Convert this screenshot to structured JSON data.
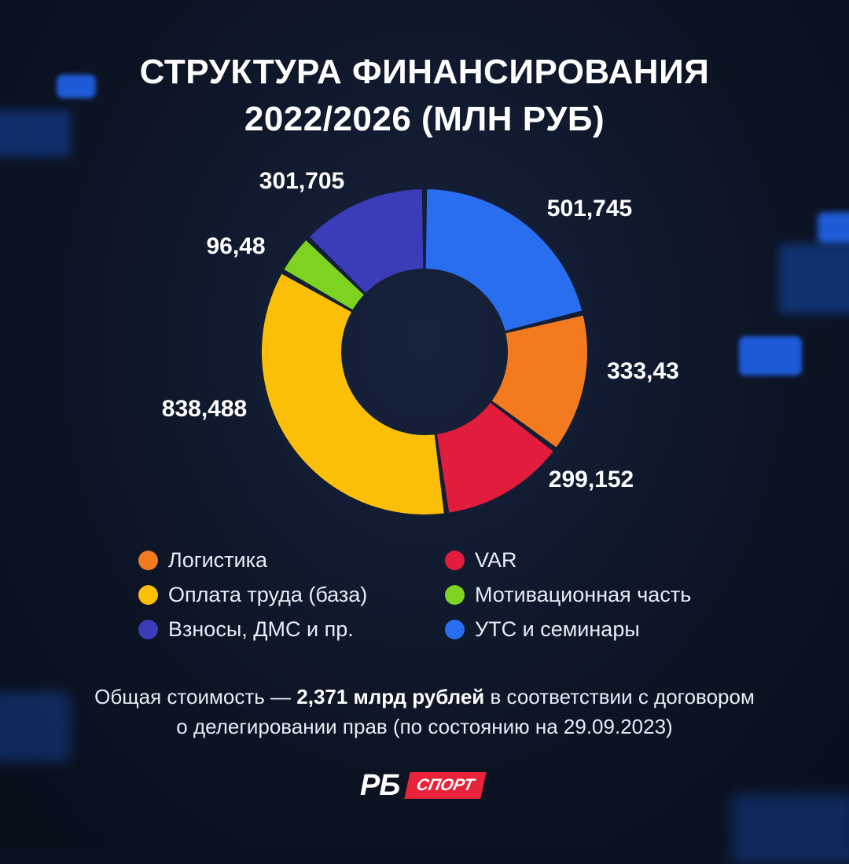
{
  "title": {
    "line1": "СТРУКТУРА ФИНАНСИРОВАНИЯ",
    "line2": "2022/2026 (МЛН РУБ)"
  },
  "chart_data": {
    "type": "pie",
    "donut": true,
    "series": [
      {
        "name": "УТС и семинары",
        "value": 501.745,
        "label": "501,745",
        "color": "#2a6ef0"
      },
      {
        "name": "Логистика",
        "value": 333.43,
        "label": "333,43",
        "color": "#f47a20"
      },
      {
        "name": "VAR",
        "value": 299.152,
        "label": "299,152",
        "color": "#e21c3c"
      },
      {
        "name": "Оплата труда (база)",
        "value": 838.488,
        "label": "838,488",
        "color": "#fbbf0a"
      },
      {
        "name": "Мотивационная часть",
        "value": 96.48,
        "label": "96,48",
        "color": "#7ed321"
      },
      {
        "name": "Взносы, ДМС и пр.",
        "value": 301.705,
        "label": "301,705",
        "color": "#3a3cb8"
      }
    ],
    "legend": [
      {
        "name": "Логистика",
        "color": "#f47a20"
      },
      {
        "name": "VAR",
        "color": "#e21c3c"
      },
      {
        "name": "Оплата труда (база)",
        "color": "#fbbf0a"
      },
      {
        "name": "Мотивационная часть",
        "color": "#7ed321"
      },
      {
        "name": "Взносы, ДМС и пр.",
        "color": "#3a3cb8"
      },
      {
        "name": "УТС и семинары",
        "color": "#2a6ef0"
      }
    ],
    "legend_placement": "bottom"
  },
  "footnote": {
    "prefix": "Общая стоимость — ",
    "bold": "2,371 млрд рублей",
    "suffix": " в соответствии с договором",
    "line2": "о делегировании прав (по состоянию на 29.09.2023)"
  },
  "logo": {
    "main": "РБ",
    "badge": "СПОРТ"
  }
}
